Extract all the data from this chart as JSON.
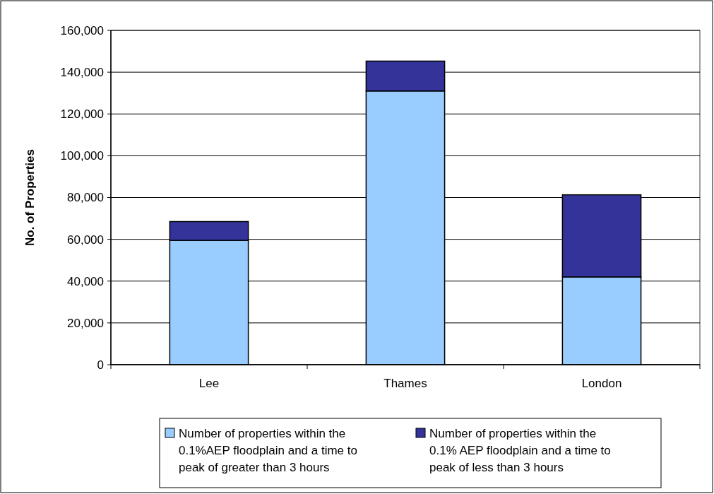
{
  "chart_data": {
    "type": "bar",
    "ylabel": "No. of Properties",
    "categories": [
      "Lee",
      "Thames",
      "London"
    ],
    "stacked": true,
    "series": [
      {
        "name": "Number of properties within the 0.1%AEP floodplain and a time to peak of greater than 3 hours",
        "color": "#99ccff",
        "values": [
          59500,
          131000,
          42000
        ]
      },
      {
        "name": "Number of properties within the 0.1% AEP floodplain and a time to peak of less than 3 hours",
        "color": "#333399",
        "values": [
          9000,
          14300,
          39300
        ]
      }
    ],
    "ylim": [
      0,
      160000
    ],
    "yticks": [
      {
        "value": 0,
        "label": "0"
      },
      {
        "value": 20000,
        "label": "20,000"
      },
      {
        "value": 40000,
        "label": "40,000"
      },
      {
        "value": 60000,
        "label": "60,000"
      },
      {
        "value": 80000,
        "label": "80,000"
      },
      {
        "value": 100000,
        "label": "100,000"
      },
      {
        "value": 120000,
        "label": "120,000"
      },
      {
        "value": 140000,
        "label": "140,000"
      },
      {
        "value": 160000,
        "label": "160,000"
      }
    ],
    "grid": "y",
    "legend": "bottom"
  }
}
